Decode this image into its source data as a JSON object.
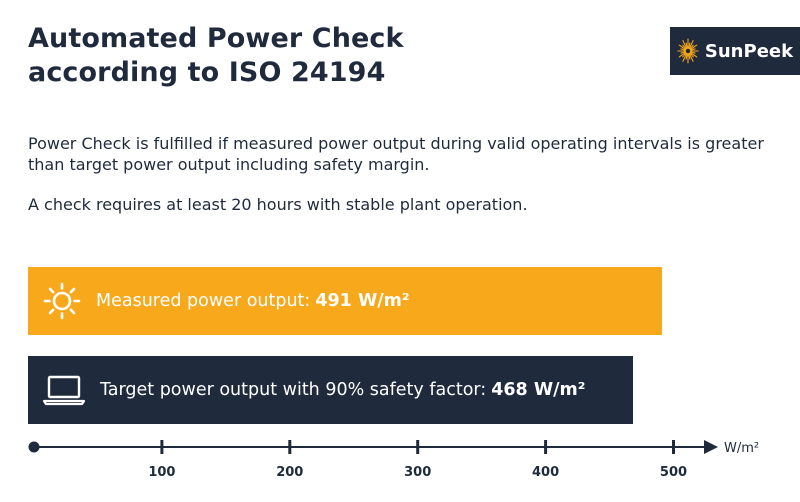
{
  "title_lines": [
    "Automated Power Check",
    "according to ISO 24194"
  ],
  "logo": {
    "text": "SunPeek",
    "icon": "sun-burst-icon"
  },
  "description": [
    "Power Check is fulfilled if measured power output during valid operating intervals is greater than target power output including safety margin.",
    "A check requires at least 20 hours with stable plant operation."
  ],
  "colors": {
    "measured": "#f7a81b",
    "target": "#1f2a3c",
    "text": "#1f2a3c",
    "logo_accent": "#f7a81b"
  },
  "chart_data": {
    "type": "bar",
    "orientation": "horizontal",
    "bars": [
      {
        "label": "Measured power output:",
        "value": 491,
        "value_label": "491 W/m²",
        "icon": "sun-icon"
      },
      {
        "label": "Target power output with 90% safety factor:",
        "value": 468,
        "value_label": "468 W/m²",
        "icon": "laptop-icon"
      }
    ],
    "x_axis": {
      "unit": "W/m²",
      "min": 0,
      "ticks": [
        100,
        200,
        300,
        400,
        500
      ]
    }
  }
}
